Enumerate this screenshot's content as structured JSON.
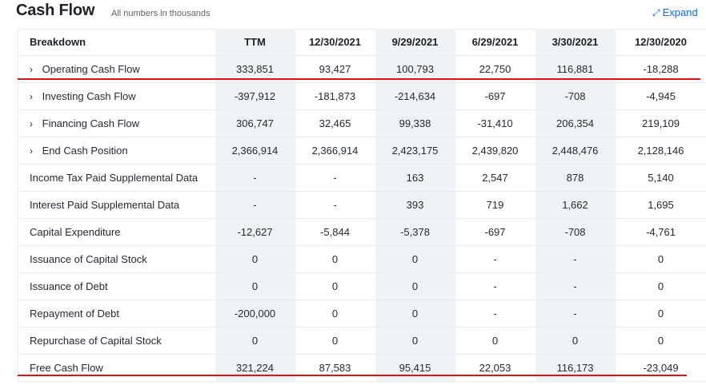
{
  "header": {
    "title": "Cash Flow",
    "subtitle": "All numbers in thousands",
    "expand_label": "Expand"
  },
  "columns": [
    "Breakdown",
    "TTM",
    "12/30/2021",
    "9/29/2021",
    "6/29/2021",
    "3/30/2021",
    "12/30/2020"
  ],
  "rows": [
    {
      "label": "Operating Cash Flow",
      "expandable": true,
      "values": [
        "333,851",
        "93,427",
        "100,793",
        "22,750",
        "116,881",
        "-18,288"
      ]
    },
    {
      "label": "Investing Cash Flow",
      "expandable": true,
      "values": [
        "-397,912",
        "-181,873",
        "-214,634",
        "-697",
        "-708",
        "-4,945"
      ]
    },
    {
      "label": "Financing Cash Flow",
      "expandable": true,
      "values": [
        "306,747",
        "32,465",
        "99,338",
        "-31,410",
        "206,354",
        "219,109"
      ]
    },
    {
      "label": "End Cash Position",
      "expandable": true,
      "values": [
        "2,366,914",
        "2,366,914",
        "2,423,175",
        "2,439,820",
        "2,448,476",
        "2,128,146"
      ]
    },
    {
      "label": "Income Tax Paid Supplemental Data",
      "expandable": false,
      "values": [
        "-",
        "-",
        "163",
        "2,547",
        "878",
        "5,140"
      ]
    },
    {
      "label": "Interest Paid Supplemental Data",
      "expandable": false,
      "values": [
        "-",
        "-",
        "393",
        "719",
        "1,662",
        "1,695"
      ]
    },
    {
      "label": "Capital Expenditure",
      "expandable": false,
      "values": [
        "-12,627",
        "-5,844",
        "-5,378",
        "-697",
        "-708",
        "-4,761"
      ]
    },
    {
      "label": "Issuance of Capital Stock",
      "expandable": false,
      "values": [
        "0",
        "0",
        "0",
        "-",
        "-",
        "0"
      ]
    },
    {
      "label": "Issuance of Debt",
      "expandable": false,
      "values": [
        "0",
        "0",
        "0",
        "-",
        "-",
        "0"
      ]
    },
    {
      "label": "Repayment of Debt",
      "expandable": false,
      "values": [
        "-200,000",
        "0",
        "0",
        "-",
        "-",
        "0"
      ]
    },
    {
      "label": "Repurchase of Capital Stock",
      "expandable": false,
      "values": [
        "0",
        "0",
        "0",
        "0",
        "0",
        "0"
      ]
    },
    {
      "label": "Free Cash Flow",
      "expandable": false,
      "values": [
        "321,224",
        "87,583",
        "95,415",
        "22,053",
        "116,173",
        "-23,049"
      ]
    }
  ],
  "shaded_columns": [
    0,
    2,
    4
  ],
  "annotation_color": "#d7161b"
}
